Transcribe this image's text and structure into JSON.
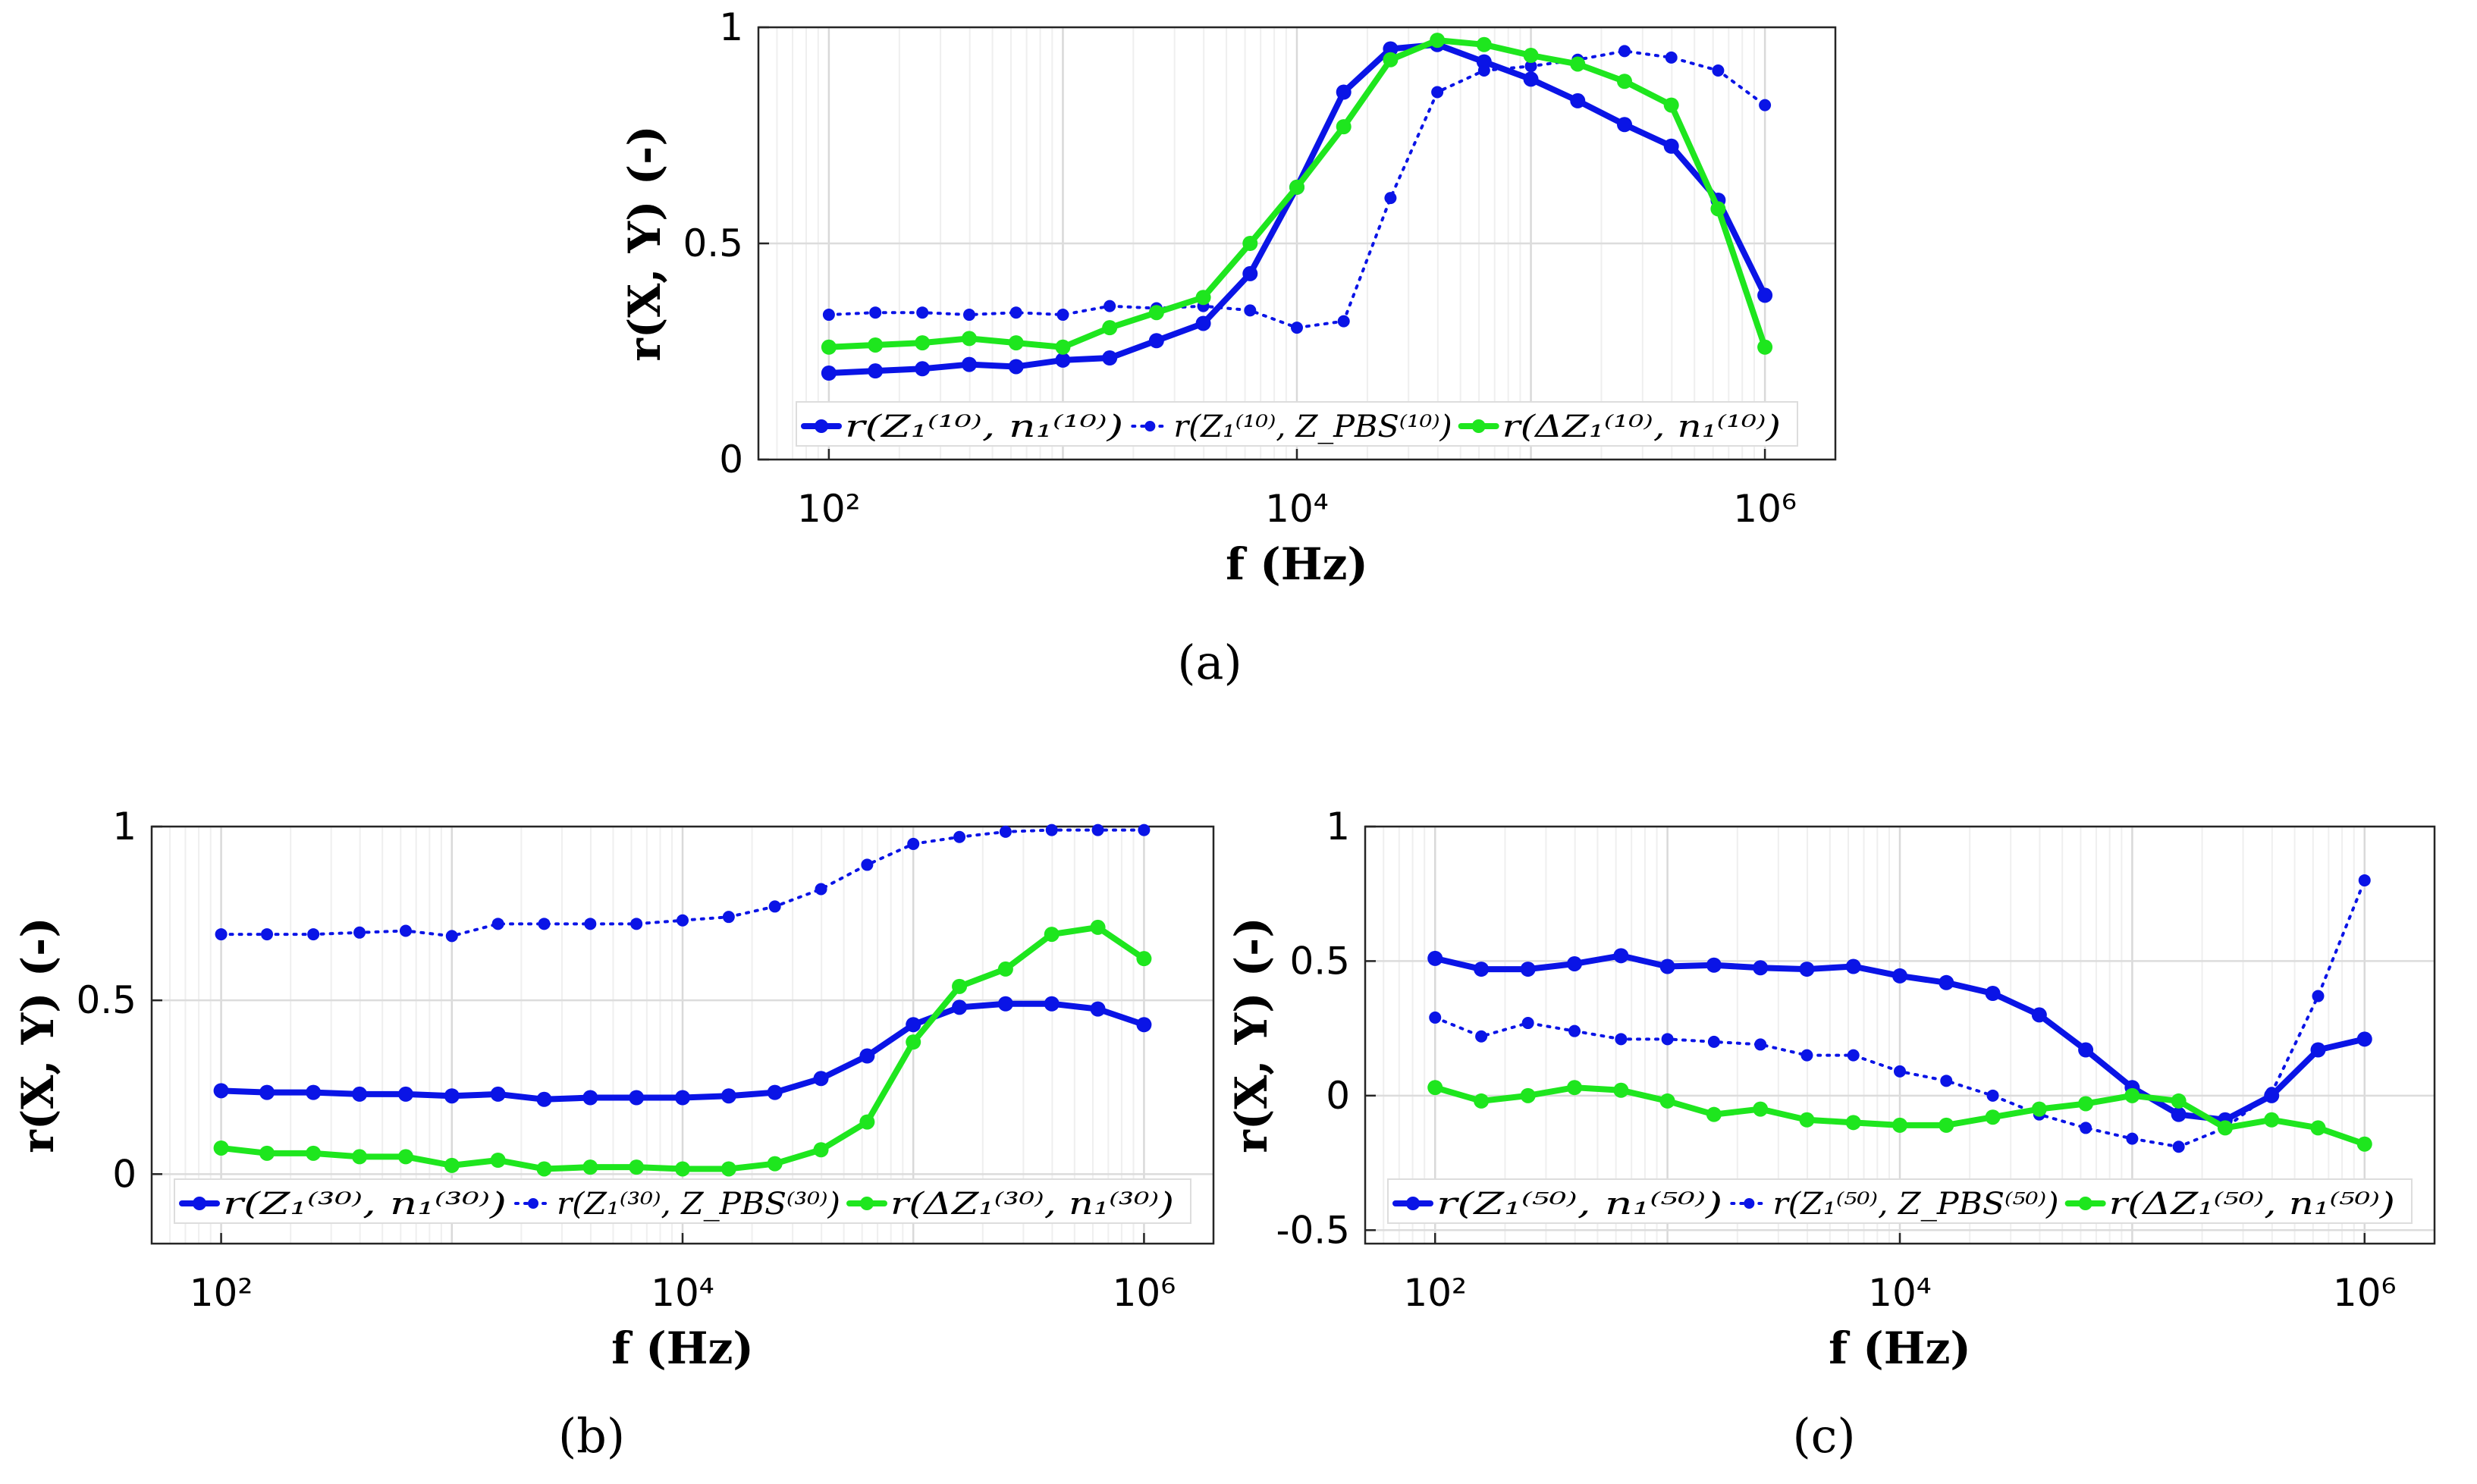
{
  "chart_data": [
    {
      "panel_label": "(a)",
      "type": "line",
      "xlabel": "f  (Hz)",
      "ylabel": "r(X, Y)  (-)",
      "xscale": "log",
      "xlim": [
        50,
        2000000
      ],
      "ylim": [
        0,
        1
      ],
      "yticks": [
        0,
        0.5,
        1
      ],
      "ytick_labels": [
        "0",
        "0.5",
        "1"
      ],
      "xticks": [
        100,
        10000,
        1000000
      ],
      "xtick_labels": [
        "10²",
        "10⁴",
        "10⁶"
      ],
      "grid": true,
      "legend": {
        "placement": "bottom",
        "orientation": "horizontal"
      },
      "x": [
        100,
        158,
        251,
        398,
        631,
        1000,
        1585,
        2512,
        3981,
        6310,
        10000,
        15849,
        25119,
        39811,
        63096,
        100000,
        158489,
        251189,
        398107,
        630957,
        1000000
      ],
      "series": [
        {
          "name": "r(Z₁⁽¹⁰⁾, n₁⁽¹⁰⁾)",
          "color": "#0a14e6",
          "style": "solid",
          "values": [
            0.2,
            0.205,
            0.21,
            0.22,
            0.215,
            0.23,
            0.235,
            0.275,
            0.315,
            0.43,
            0.63,
            0.85,
            0.95,
            0.96,
            0.92,
            0.88,
            0.83,
            0.775,
            0.725,
            0.6,
            0.38
          ]
        },
        {
          "name": "r(Z₁⁽¹⁰⁾, Z_PBS⁽¹⁰⁾)",
          "color": "#0a14e6",
          "style": "dotted",
          "values": [
            0.335,
            0.34,
            0.34,
            0.335,
            0.34,
            0.335,
            0.355,
            0.35,
            0.355,
            0.345,
            0.305,
            0.32,
            0.605,
            0.85,
            0.9,
            0.91,
            0.925,
            0.945,
            0.93,
            0.9,
            0.82
          ]
        },
        {
          "name": "r(ΔZ₁⁽¹⁰⁾, n₁⁽¹⁰⁾)",
          "color": "#1ee61e",
          "style": "solid",
          "values": [
            0.26,
            0.265,
            0.27,
            0.28,
            0.27,
            0.26,
            0.305,
            0.34,
            0.375,
            0.5,
            0.63,
            0.77,
            0.925,
            0.97,
            0.96,
            0.935,
            0.915,
            0.875,
            0.82,
            0.58,
            0.26
          ]
        }
      ]
    },
    {
      "panel_label": "(b)",
      "type": "line",
      "xlabel": "f  (Hz)",
      "ylabel": "r(X, Y)  (-)",
      "xscale": "log",
      "xlim": [
        50,
        2000000
      ],
      "ylim": [
        -0.2,
        1
      ],
      "yticks": [
        0,
        0.5,
        1
      ],
      "ytick_labels": [
        "0",
        "0.5",
        "1"
      ],
      "xticks": [
        100,
        10000,
        1000000
      ],
      "xtick_labels": [
        "10²",
        "10⁴",
        "10⁶"
      ],
      "grid": true,
      "legend": {
        "placement": "bottom",
        "orientation": "horizontal"
      },
      "x": [
        100,
        158,
        251,
        398,
        631,
        1000,
        1585,
        2512,
        3981,
        6310,
        10000,
        15849,
        25119,
        39811,
        63096,
        100000,
        158489,
        251189,
        398107,
        630957,
        1000000
      ],
      "series": [
        {
          "name": "r(Z₁⁽³⁰⁾, n₁⁽³⁰⁾)",
          "color": "#0a14e6",
          "style": "solid",
          "values": [
            0.24,
            0.235,
            0.235,
            0.23,
            0.23,
            0.225,
            0.23,
            0.215,
            0.22,
            0.22,
            0.22,
            0.225,
            0.235,
            0.275,
            0.34,
            0.43,
            0.48,
            0.49,
            0.49,
            0.475,
            0.43
          ]
        },
        {
          "name": "r(Z₁⁽³⁰⁾, Z_PBS⁽³⁰⁾)",
          "color": "#0a14e6",
          "style": "dotted",
          "values": [
            0.69,
            0.69,
            0.69,
            0.695,
            0.7,
            0.685,
            0.72,
            0.72,
            0.72,
            0.72,
            0.73,
            0.74,
            0.77,
            0.82,
            0.89,
            0.95,
            0.97,
            0.985,
            0.99,
            0.99,
            0.99
          ]
        },
        {
          "name": "r(ΔZ₁⁽³⁰⁾, n₁⁽³⁰⁾)",
          "color": "#1ee61e",
          "style": "solid",
          "values": [
            0.075,
            0.06,
            0.06,
            0.05,
            0.05,
            0.025,
            0.04,
            0.015,
            0.02,
            0.02,
            0.015,
            0.015,
            0.03,
            0.07,
            0.15,
            0.38,
            0.54,
            0.59,
            0.69,
            0.71,
            0.62
          ]
        }
      ]
    },
    {
      "panel_label": "(c)",
      "type": "line",
      "xlabel": "f  (Hz)",
      "ylabel": "r(X, Y)  (-)",
      "xscale": "log",
      "xlim": [
        50,
        2000000
      ],
      "ylim": [
        -0.55,
        1
      ],
      "yticks": [
        -0.5,
        0,
        0.5,
        1
      ],
      "ytick_labels": [
        "-0.5",
        "0",
        "0.5",
        "1"
      ],
      "xticks": [
        100,
        10000,
        1000000
      ],
      "xtick_labels": [
        "10²",
        "10⁴",
        "10⁶"
      ],
      "grid": true,
      "legend": {
        "placement": "bottom",
        "orientation": "horizontal"
      },
      "x": [
        100,
        158,
        251,
        398,
        631,
        1000,
        1585,
        2512,
        3981,
        6310,
        10000,
        15849,
        25119,
        39811,
        63096,
        100000,
        158489,
        251189,
        398107,
        630957,
        1000000
      ],
      "series": [
        {
          "name": "r(Z₁⁽⁵⁰⁾, n₁⁽⁵⁰⁾)",
          "color": "#0a14e6",
          "style": "solid",
          "values": [
            0.51,
            0.47,
            0.47,
            0.49,
            0.52,
            0.48,
            0.485,
            0.475,
            0.47,
            0.48,
            0.445,
            0.42,
            0.38,
            0.3,
            0.17,
            0.03,
            -0.07,
            -0.09,
            0.0,
            0.17,
            0.21
          ]
        },
        {
          "name": "r(Z₁⁽⁵⁰⁾, Z_PBS⁽⁵⁰⁾)",
          "color": "#0a14e6",
          "style": "dotted",
          "values": [
            0.29,
            0.22,
            0.27,
            0.24,
            0.21,
            0.21,
            0.2,
            0.19,
            0.15,
            0.15,
            0.09,
            0.055,
            0.0,
            -0.07,
            -0.12,
            -0.16,
            -0.19,
            -0.12,
            0.01,
            0.37,
            0.8
          ]
        },
        {
          "name": "r(ΔZ₁⁽⁵⁰⁾, n₁⁽⁵⁰⁾)",
          "color": "#1ee61e",
          "style": "solid",
          "values": [
            0.03,
            -0.02,
            0.0,
            0.03,
            0.02,
            -0.02,
            -0.07,
            -0.05,
            -0.09,
            -0.1,
            -0.11,
            -0.11,
            -0.08,
            -0.05,
            -0.03,
            0.0,
            -0.02,
            -0.12,
            -0.09,
            -0.12,
            -0.18
          ]
        }
      ]
    }
  ]
}
